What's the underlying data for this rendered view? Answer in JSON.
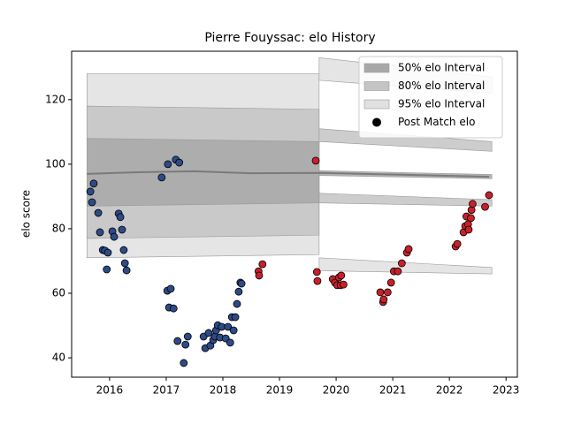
{
  "chart_data": {
    "type": "scatter",
    "title": "Pierre Fouyssac: elo History",
    "y_label": "elo score",
    "xlim": [
      2015.33,
      2023.2
    ],
    "ylim": [
      34,
      135
    ],
    "xticks": [
      2016,
      2017,
      2018,
      2019,
      2020,
      2021,
      2022,
      2023
    ],
    "yticks": [
      40,
      60,
      80,
      100,
      120
    ],
    "legend": "upper right",
    "bands": [
      {
        "name": "50% elo Interval",
        "color": "#a8a8a8",
        "pieces": [
          {
            "x": [
              2015.6,
              2019.7
            ],
            "lower": [
              87,
              88
            ],
            "upper": [
              108,
              107
            ]
          },
          {
            "x": [
              2019.7,
              2022.75
            ],
            "lower": [
              96.5,
              95.5
            ],
            "upper": [
              98,
              96.8
            ]
          }
        ]
      },
      {
        "name": "80% elo Interval",
        "color": "#c4c4c4",
        "pieces": [
          {
            "x": [
              2015.6,
              2019.7
            ],
            "lower": [
              77,
              78
            ],
            "upper": [
              118,
              117
            ]
          },
          {
            "x": [
              2019.7,
              2022.75
            ],
            "lower": [
              107,
              104
            ],
            "upper": [
              111,
              107
            ]
          },
          {
            "x": [
              2019.7,
              2022.75
            ],
            "lower": [
              88,
              87
            ],
            "upper": [
              91,
              89
            ]
          }
        ]
      },
      {
        "name": "95% elo Interval",
        "color": "#e0e0e0",
        "pieces": [
          {
            "x": [
              2015.6,
              2019.7
            ],
            "lower": [
              71,
              72
            ],
            "upper": [
              128,
              128
            ]
          },
          {
            "x": [
              2019.7,
              2022.75
            ],
            "lower": [
              126,
              122
            ],
            "upper": [
              133,
              127
            ]
          },
          {
            "x": [
              2019.7,
              2022.75
            ],
            "lower": [
              67,
              66
            ],
            "upper": [
              71,
              68
            ]
          }
        ]
      }
    ],
    "median": {
      "color": "#7a7a7a",
      "x": [
        2015.6,
        2016.5,
        2017.5,
        2018.5,
        2019.7,
        2020.5,
        2021.5,
        2022.7
      ],
      "values": [
        97,
        97.5,
        97.8,
        97.2,
        97.3,
        97.0,
        96.6,
        96.1
      ]
    },
    "series": [
      {
        "name": "Post Match elo",
        "color": "#000000",
        "groups": [
          {
            "color": "#2e4a87",
            "x": [
              2015.66,
              2015.69,
              2015.72,
              2015.8,
              2015.83,
              2015.88,
              2015.92,
              2015.95,
              2015.97,
              2016.05,
              2016.08,
              2016.16,
              2016.19,
              2016.22,
              2016.25,
              2016.27,
              2016.3,
              2016.92,
              2017.03,
              2017.02,
              2017.05,
              2017.08,
              2017.13,
              2017.17,
              2017.2,
              2017.23,
              2017.31,
              2017.34,
              2017.38,
              2017.66,
              2017.69,
              2017.75,
              2017.78,
              2017.83,
              2017.86,
              2017.88,
              2017.91,
              2017.95,
              2017.98,
              2018.05,
              2018.09,
              2018.13,
              2018.16,
              2018.19,
              2018.22,
              2018.25,
              2018.28,
              2018.31,
              2018.33
            ],
            "values": [
              91.5,
              88.2,
              94.0,
              84.9,
              78.9,
              73.4,
              73.2,
              67.4,
              72.6,
              79.2,
              77.5,
              84.7,
              83.6,
              79.7,
              73.4,
              69.3,
              67.1,
              95.9,
              100.0,
              60.8,
              55.6,
              61.4,
              55.3,
              101.4,
              45.2,
              100.5,
              38.4,
              44.1,
              46.6,
              46.6,
              43.0,
              47.7,
              43.8,
              45.5,
              46.6,
              48.5,
              50.1,
              46.3,
              49.6,
              46.0,
              49.6,
              44.7,
              52.6,
              48.5,
              52.6,
              56.7,
              60.5,
              63.3,
              63.0
            ]
          },
          {
            "color": "#c8202a",
            "x": [
              2018.63,
              2018.64,
              2018.7,
              2019.64,
              2019.66,
              2019.67,
              2019.94,
              2019.98,
              2020.02,
              2020.05,
              2020.08,
              2020.09,
              2020.13,
              2020.78,
              2020.83,
              2020.84,
              2020.91,
              2020.97,
              2021.02,
              2021.09,
              2021.16,
              2021.25,
              2021.28,
              2022.11,
              2022.14,
              2022.25,
              2022.28,
              2022.3,
              2022.33,
              2022.34,
              2022.38,
              2022.39,
              2022.41,
              2022.63,
              2022.7
            ],
            "values": [
              66.8,
              65.5,
              69.0,
              101.1,
              66.6,
              63.8,
              64.4,
              63.3,
              62.5,
              64.9,
              62.5,
              65.5,
              62.7,
              60.3,
              57.3,
              58.1,
              60.3,
              63.3,
              66.8,
              66.8,
              69.3,
              72.6,
              73.7,
              74.5,
              75.3,
              78.9,
              80.8,
              83.8,
              81.4,
              79.7,
              83.3,
              85.8,
              87.7,
              86.8,
              90.4
            ]
          }
        ]
      }
    ]
  }
}
